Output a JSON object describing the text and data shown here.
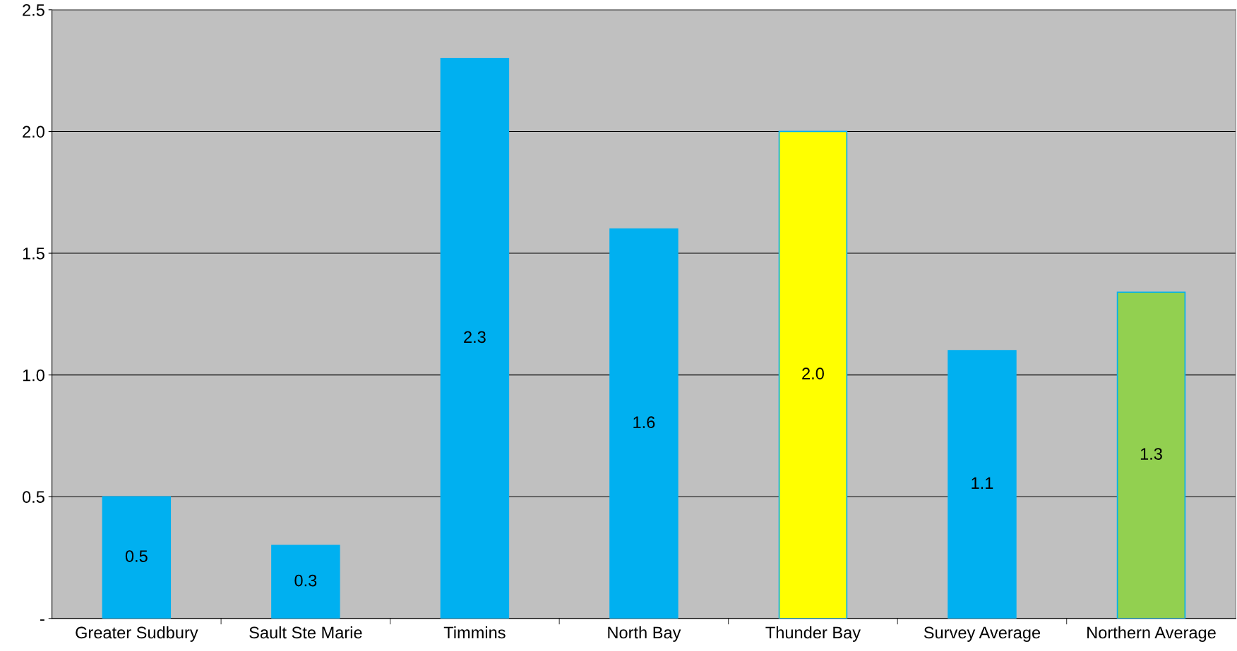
{
  "chart_data": {
    "type": "bar",
    "categories": [
      "Greater Sudbury",
      "Sault Ste Marie",
      "Timmins",
      "North Bay",
      "Thunder Bay",
      "Survey Average",
      "Northern Average"
    ],
    "values": [
      0.5,
      0.3,
      2.3,
      1.6,
      2.0,
      1.1,
      1.34
    ],
    "value_labels": [
      "0.5",
      "0.3",
      "2.3",
      "1.6",
      "2.0",
      "1.1",
      "1.3"
    ],
    "colors": [
      "#00b0f0",
      "#00b0f0",
      "#00b0f0",
      "#00b0f0",
      "#ffff00",
      "#00b0f0",
      "#92d050"
    ],
    "ylim": [
      0,
      2.5
    ],
    "yticks": [
      {
        "value": 0,
        "label": "-"
      },
      {
        "value": 0.5,
        "label": "0.5"
      },
      {
        "value": 1.0,
        "label": "1.0"
      },
      {
        "value": 1.5,
        "label": "1.5"
      },
      {
        "value": 2.0,
        "label": "2.0"
      },
      {
        "value": 2.5,
        "label": "2.5"
      }
    ],
    "grid": "y",
    "legend": false
  }
}
